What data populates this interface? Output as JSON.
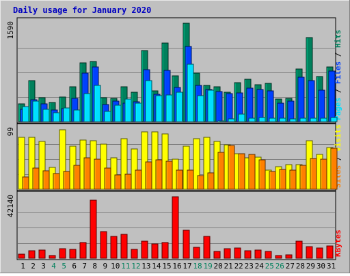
{
  "chart_data": {
    "type": "bar",
    "title": "Daily usage for January 2020",
    "categories": [
      "1",
      "2",
      "3",
      "4",
      "5",
      "6",
      "7",
      "8",
      "9",
      "10",
      "11",
      "12",
      "13",
      "14",
      "15",
      "16",
      "17",
      "18",
      "19",
      "20",
      "21",
      "22",
      "23",
      "24",
      "25",
      "26",
      "27",
      "28",
      "29",
      "30",
      "31"
    ],
    "weekend_days": [
      "4",
      "5",
      "11",
      "12",
      "18",
      "19",
      "25",
      "26"
    ],
    "panels": [
      {
        "id": "pages-files-hits",
        "ytick_label": "1590",
        "ylim": [
          0,
          1590
        ],
        "side_label": [
          "Pages",
          "Files",
          "Hits"
        ],
        "series": [
          {
            "name": "Hits",
            "color": "#00805c",
            "values": [
              290,
              660,
              390,
              310,
              400,
              560,
              950,
              970,
              390,
              380,
              560,
              470,
              1150,
              500,
              1270,
              740,
              1590,
              780,
              580,
              560,
              480,
              630,
              690,
              600,
              620,
              360,
              380,
              850,
              1360,
              730,
              880
            ]
          },
          {
            "name": "Files",
            "color": "#0040ff",
            "values": [
              200,
              350,
              290,
              190,
              210,
              370,
              780,
              880,
              280,
              330,
              300,
              320,
              840,
              440,
              830,
              550,
              1210,
              590,
              520,
              490,
              450,
              460,
              540,
              520,
              500,
              300,
              330,
              720,
              660,
              510,
              820
            ]
          },
          {
            "name": "Pages",
            "color": "#00e0ff",
            "values": [
              240,
              330,
              200,
              140,
              220,
              190,
              450,
              590,
              170,
              270,
              360,
              300,
              660,
              420,
              430,
              480,
              930,
              420,
              510,
              10,
              40,
              120,
              50,
              70,
              60,
              50,
              40,
              60,
              50,
              60,
              70
            ]
          }
        ]
      },
      {
        "id": "visits-sites",
        "ytick_label": "99",
        "ylim": [
          0,
          99
        ],
        "side_label": [
          "Sites",
          "Visits"
        ],
        "series": [
          {
            "name": "Visits",
            "color": "#ffff00",
            "values": [
              85,
              85,
              79,
              36,
              98,
              71,
              81,
              80,
              74,
              52,
              83,
              66,
              95,
              94,
              91,
              49,
              71,
              83,
              85,
              79,
              73,
              58,
              52,
              53,
              32,
              37,
              40,
              40,
              80,
              57,
              69
            ]
          },
          {
            "name": "Sites",
            "color": "#ff8000",
            "values": [
              20,
              35,
              30,
              26,
              29,
              39,
              52,
              49,
              35,
              24,
              25,
              31,
              45,
              48,
              46,
              32,
              31,
              23,
              27,
              61,
              72,
              58,
              57,
              48,
              29,
              33,
              31,
              39,
              51,
              50,
              67
            ]
          }
        ]
      },
      {
        "id": "kbytes",
        "ytick_label": "42140",
        "ylim": [
          0,
          42140
        ],
        "side_label": [
          "KBytes"
        ],
        "series": [
          {
            "name": "KBytes",
            "color": "#ff0000",
            "values": [
              2900,
              5200,
              5800,
              2100,
              6500,
              5900,
              10900,
              39600,
              18100,
              15200,
              16500,
              5900,
              11800,
              9800,
              10900,
              42140,
              19400,
              7500,
              15200,
              4800,
              6600,
              6800,
              5300,
              5800,
              4600,
              2100,
              2500,
              11500,
              7800,
              6900,
              8300
            ]
          }
        ]
      }
    ]
  }
}
